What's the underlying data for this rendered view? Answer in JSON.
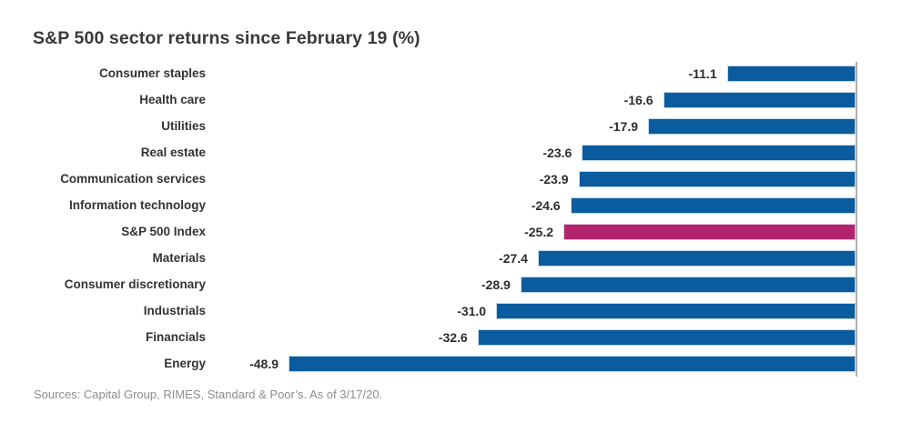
{
  "title": "S&P 500 sector returns since February 19 (%)",
  "source": "Sources: Capital Group, RIMES, Standard & Poor’s. As of 3/17/20.",
  "chart_data": {
    "type": "bar",
    "orientation": "horizontal",
    "title": "S&P 500 sector returns since February 19 (%)",
    "xlabel": "",
    "ylabel": "",
    "xlim": [
      -50,
      0
    ],
    "grid": false,
    "data_labels_position": "left-of-bar",
    "categories": [
      "Consumer staples",
      "Health care",
      "Utilities",
      "Real estate",
      "Communication services",
      "Information technology",
      "S&P 500 Index",
      "Materials",
      "Consumer discretionary",
      "Industrials",
      "Financials",
      "Energy"
    ],
    "values": [
      -11.1,
      -16.6,
      -17.9,
      -23.6,
      -23.9,
      -24.6,
      -25.2,
      -27.4,
      -28.9,
      -31.0,
      -32.6,
      -48.9
    ],
    "value_labels": [
      "-11.1",
      "-16.6",
      "-17.9",
      "-23.6",
      "-23.9",
      "-24.6",
      "-25.2",
      "-27.4",
      "-28.9",
      "-31.0",
      "-32.6",
      "-48.9"
    ],
    "highlight_category": "S&P 500 Index",
    "highlight_index": 6,
    "bar_color": "#0a5c9e",
    "highlight_color": "#b3246f",
    "baseline_color": "#aeaeae"
  }
}
